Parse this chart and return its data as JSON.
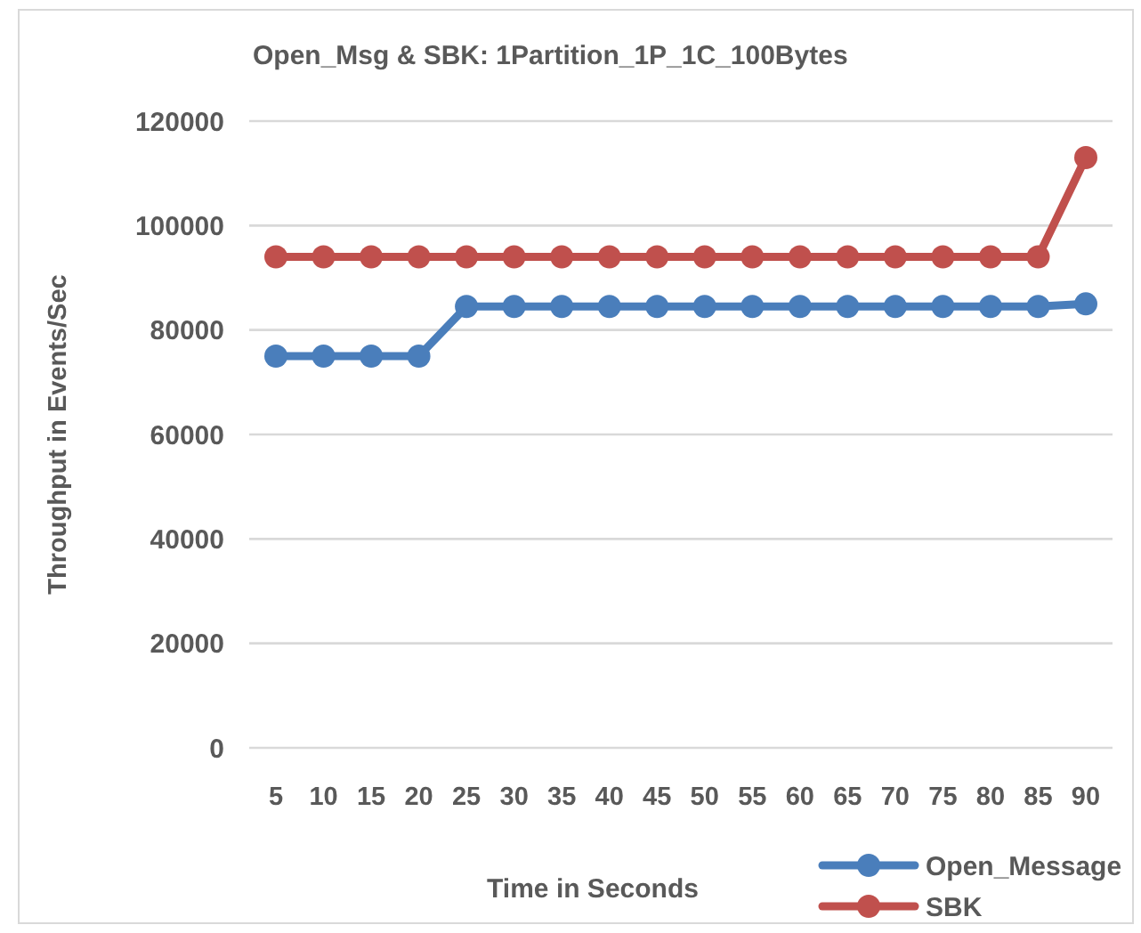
{
  "chart_data": {
    "type": "line",
    "title": "Open_Msg & SBK: 1Partition_1P_1C_100Bytes",
    "xlabel": "Time in Seconds",
    "ylabel": "Throughput in Events/Sec",
    "categories": [
      "5",
      "10",
      "15",
      "20",
      "25",
      "30",
      "35",
      "40",
      "45",
      "50",
      "55",
      "60",
      "65",
      "70",
      "75",
      "80",
      "85",
      "90"
    ],
    "series": [
      {
        "name": "Open_Message",
        "color": "#4a7ebb",
        "values": [
          75000,
          75000,
          75000,
          75000,
          84500,
          84500,
          84500,
          84500,
          84500,
          84500,
          84500,
          84500,
          84500,
          84500,
          84500,
          84500,
          84500,
          85000
        ]
      },
      {
        "name": "SBK",
        "color": "#c0504d",
        "values": [
          94000,
          94000,
          94000,
          94000,
          94000,
          94000,
          94000,
          94000,
          94000,
          94000,
          94000,
          94000,
          94000,
          94000,
          94000,
          94000,
          94000,
          113000
        ]
      }
    ],
    "ylim": [
      0,
      120000
    ],
    "yticks": [
      0,
      20000,
      40000,
      60000,
      80000,
      100000,
      120000
    ],
    "grid": "y",
    "legend": "bottom right",
    "marker": "circle",
    "line_style": "solid"
  }
}
